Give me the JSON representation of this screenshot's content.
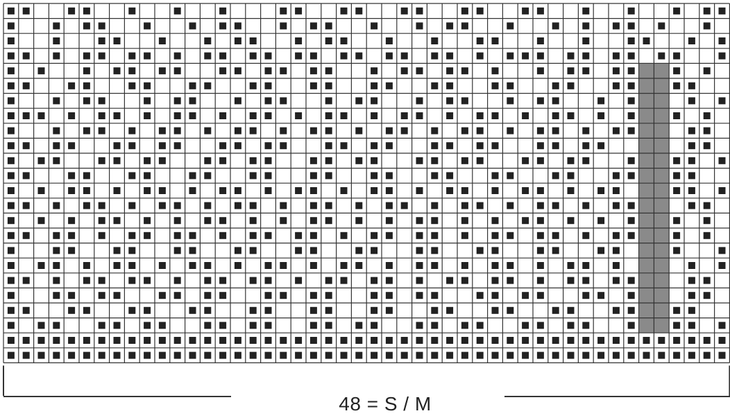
{
  "chart_data": {
    "type": "knitting-chart",
    "columns": 48,
    "rows": 24,
    "shaded_columns": [
      42,
      43
    ],
    "shaded_color": "#8a8a8a",
    "filled_color": "#222222",
    "line_color": "#333333",
    "grid_rows": [
      "110011001001001000110011001100110011001001001011",
      "100101100100101100101100100101100100101011010010",
      "100100110010010110010110010010011001001001100101",
      "110101101101011011011011011011010111011011011001",
      "101001011011001101101100101101101001011011011010",
      "110011001100110011001100110011001100110011001100",
      "100101100101100101100101100101100101100101100101",
      "111010110101101011010110101101011010110101101010",
      "100101101011010110101101011010110101101011010110",
      "110110011011001101100110110011011001101100110110",
      "101100110110011011001101100110110011011001101101",
      "110011001100110011001100110011001100110011001100",
      "101011010110101101011010110101101011010110101101",
      "110101101011010110101101011010110101101011010110",
      "101010110101011010101101010110101011010101101010",
      "110110101101101011011010110110101101101011011010",
      "100110011001100110011001100110011001100110011001",
      "101101011010110101101011010110101101011010110101",
      "110101101101011011010110110101101101011011010110",
      "100110110011011001101100110110011011001101100110",
      "110011001100110011001100110011001100110011001100",
      "101100110110011011001101100110110011011001101101",
      "111111111111111111111111111111111111111111111111",
      "111111111111111111111111111111111111111111111111"
    ],
    "size_label": "48 = S / M"
  }
}
